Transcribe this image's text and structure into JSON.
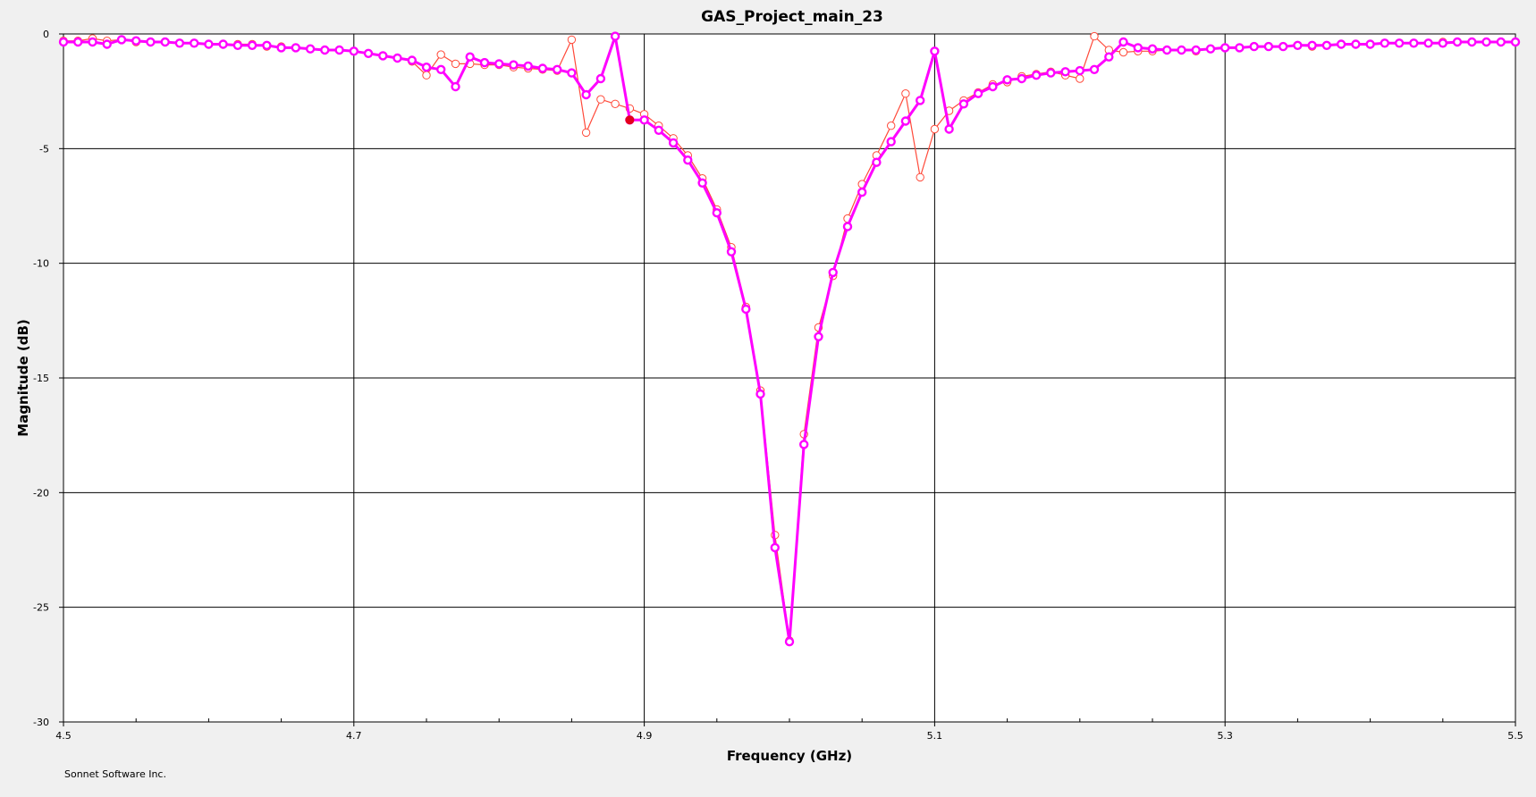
{
  "chart_data": {
    "type": "line",
    "title": "GAS_Project_main_23",
    "xlabel": "Frequency (GHz)",
    "ylabel": "Magnitude (dB)",
    "xlim": [
      4.5,
      5.5
    ],
    "ylim": [
      -30,
      0
    ],
    "x_ticks": [
      "4.5",
      "4.7",
      "4.9",
      "5.1",
      "5.3",
      "5.5"
    ],
    "x_tick_values": [
      4.5,
      4.7,
      4.9,
      5.1,
      5.3,
      5.5
    ],
    "x_minor_step": 0.05,
    "y_ticks": [
      "0",
      "-5",
      "-10",
      "-15",
      "-20",
      "-25",
      "-30"
    ],
    "y_tick_values": [
      0,
      -5,
      -10,
      -15,
      -20,
      -25,
      -30
    ],
    "grid": true,
    "legend": "none",
    "footer": "Sonnet Software Inc.",
    "marker": {
      "x": 4.89,
      "y": -3.75,
      "color": "#e3001b"
    },
    "series": [
      {
        "color": "#ff00ff",
        "style": "thick",
        "x": [
          4.5,
          4.51,
          4.52,
          4.53,
          4.54,
          4.55,
          4.56,
          4.57,
          4.58,
          4.59,
          4.6,
          4.61,
          4.62,
          4.63,
          4.64,
          4.65,
          4.66,
          4.67,
          4.68,
          4.69,
          4.7,
          4.71,
          4.72,
          4.73,
          4.74,
          4.75,
          4.76,
          4.77,
          4.78,
          4.79,
          4.8,
          4.81,
          4.82,
          4.83,
          4.84,
          4.85,
          4.86,
          4.87,
          4.88,
          4.89,
          4.9,
          4.91,
          4.92,
          4.93,
          4.94,
          4.95,
          4.96,
          4.97,
          4.98,
          4.99,
          5.0,
          5.01,
          5.02,
          5.03,
          5.04,
          5.05,
          5.06,
          5.07,
          5.08,
          5.09,
          5.1,
          5.11,
          5.12,
          5.13,
          5.14,
          5.15,
          5.16,
          5.17,
          5.18,
          5.19,
          5.2,
          5.21,
          5.22,
          5.23,
          5.24,
          5.25,
          5.26,
          5.27,
          5.28,
          5.29,
          5.3,
          5.31,
          5.32,
          5.33,
          5.34,
          5.35,
          5.36,
          5.37,
          5.38,
          5.39,
          5.4,
          5.41,
          5.42,
          5.43,
          5.44,
          5.45,
          5.46,
          5.47,
          5.48,
          5.49,
          5.5
        ],
        "y": [
          -0.35,
          -0.35,
          -0.35,
          -0.45,
          -0.25,
          -0.3,
          -0.35,
          -0.35,
          -0.4,
          -0.4,
          -0.45,
          -0.45,
          -0.5,
          -0.5,
          -0.5,
          -0.6,
          -0.6,
          -0.65,
          -0.7,
          -0.7,
          -0.75,
          -0.85,
          -0.95,
          -1.05,
          -1.15,
          -1.45,
          -1.55,
          -2.3,
          -1.0,
          -1.25,
          -1.3,
          -1.35,
          -1.4,
          -1.5,
          -1.55,
          -1.7,
          -2.65,
          -1.95,
          -0.1,
          -3.75,
          -3.75,
          -4.2,
          -4.75,
          -5.5,
          -6.5,
          -7.8,
          -9.5,
          -12.0,
          -15.7,
          -22.4,
          -26.5,
          -17.9,
          -13.2,
          -10.4,
          -8.4,
          -6.9,
          -5.6,
          -4.7,
          -3.8,
          -2.9,
          -0.75,
          -4.15,
          -3.05,
          -2.6,
          -2.3,
          -2.0,
          -1.95,
          -1.8,
          -1.7,
          -1.65,
          -1.6,
          -1.55,
          -1.0,
          -0.35,
          -0.6,
          -0.65,
          -0.7,
          -0.7,
          -0.7,
          -0.65,
          -0.6,
          -0.6,
          -0.55,
          -0.55,
          -0.55,
          -0.5,
          -0.5,
          -0.5,
          -0.45,
          -0.45,
          -0.45,
          -0.4,
          -0.4,
          -0.4,
          -0.4,
          -0.4,
          -0.35,
          -0.35,
          -0.35,
          -0.35,
          -0.35
        ]
      },
      {
        "color": "#ff4a3a",
        "style": "thin",
        "x": [
          4.5,
          4.51,
          4.52,
          4.53,
          4.54,
          4.55,
          4.56,
          4.57,
          4.58,
          4.59,
          4.6,
          4.61,
          4.62,
          4.63,
          4.64,
          4.65,
          4.66,
          4.67,
          4.68,
          4.69,
          4.7,
          4.71,
          4.72,
          4.73,
          4.74,
          4.75,
          4.76,
          4.77,
          4.78,
          4.79,
          4.8,
          4.81,
          4.82,
          4.83,
          4.84,
          4.85,
          4.86,
          4.87,
          4.88,
          4.89,
          4.9,
          4.91,
          4.92,
          4.93,
          4.94,
          4.95,
          4.96,
          4.97,
          4.98,
          4.99,
          5.0,
          5.01,
          5.02,
          5.03,
          5.04,
          5.05,
          5.06,
          5.07,
          5.08,
          5.09,
          5.1,
          5.11,
          5.12,
          5.13,
          5.14,
          5.15,
          5.16,
          5.17,
          5.18,
          5.19,
          5.2,
          5.21,
          5.22,
          5.23,
          5.24,
          5.25,
          5.26,
          5.27,
          5.28,
          5.29,
          5.3,
          5.31,
          5.32,
          5.33,
          5.34,
          5.35,
          5.36,
          5.37,
          5.38,
          5.39,
          5.4,
          5.41,
          5.42,
          5.43,
          5.44,
          5.45,
          5.46,
          5.47,
          5.48,
          5.49,
          5.5
        ],
        "y": [
          -0.3,
          -0.3,
          -0.2,
          -0.3,
          -0.25,
          -0.35,
          -0.35,
          -0.35,
          -0.4,
          -0.4,
          -0.45,
          -0.45,
          -0.45,
          -0.45,
          -0.55,
          -0.55,
          -0.6,
          -0.65,
          -0.7,
          -0.7,
          -0.75,
          -0.85,
          -0.95,
          -1.05,
          -1.2,
          -1.8,
          -0.9,
          -1.3,
          -1.3,
          -1.35,
          -1.35,
          -1.45,
          -1.5,
          -1.55,
          -1.6,
          -0.25,
          -4.3,
          -2.85,
          -3.05,
          -3.25,
          -3.5,
          -4.0,
          -4.55,
          -5.3,
          -6.3,
          -7.65,
          -9.3,
          -11.9,
          -15.55,
          -21.85,
          -26.45,
          -17.45,
          -12.8,
          -10.55,
          -8.05,
          -6.55,
          -5.3,
          -4.0,
          -2.6,
          -6.25,
          -4.15,
          -3.35,
          -2.9,
          -2.55,
          -2.2,
          -2.1,
          -1.85,
          -1.75,
          -1.65,
          -1.8,
          -1.95,
          -0.1,
          -0.7,
          -0.8,
          -0.75,
          -0.75,
          -0.7,
          -0.7,
          -0.75,
          -0.65,
          -0.6,
          -0.6,
          -0.55,
          -0.55,
          -0.55,
          -0.5,
          -0.55,
          -0.5,
          -0.45,
          -0.45,
          -0.45,
          -0.4,
          -0.4,
          -0.4,
          -0.4,
          -0.35,
          -0.35,
          -0.35,
          -0.35,
          -0.35,
          -0.35
        ]
      }
    ]
  }
}
